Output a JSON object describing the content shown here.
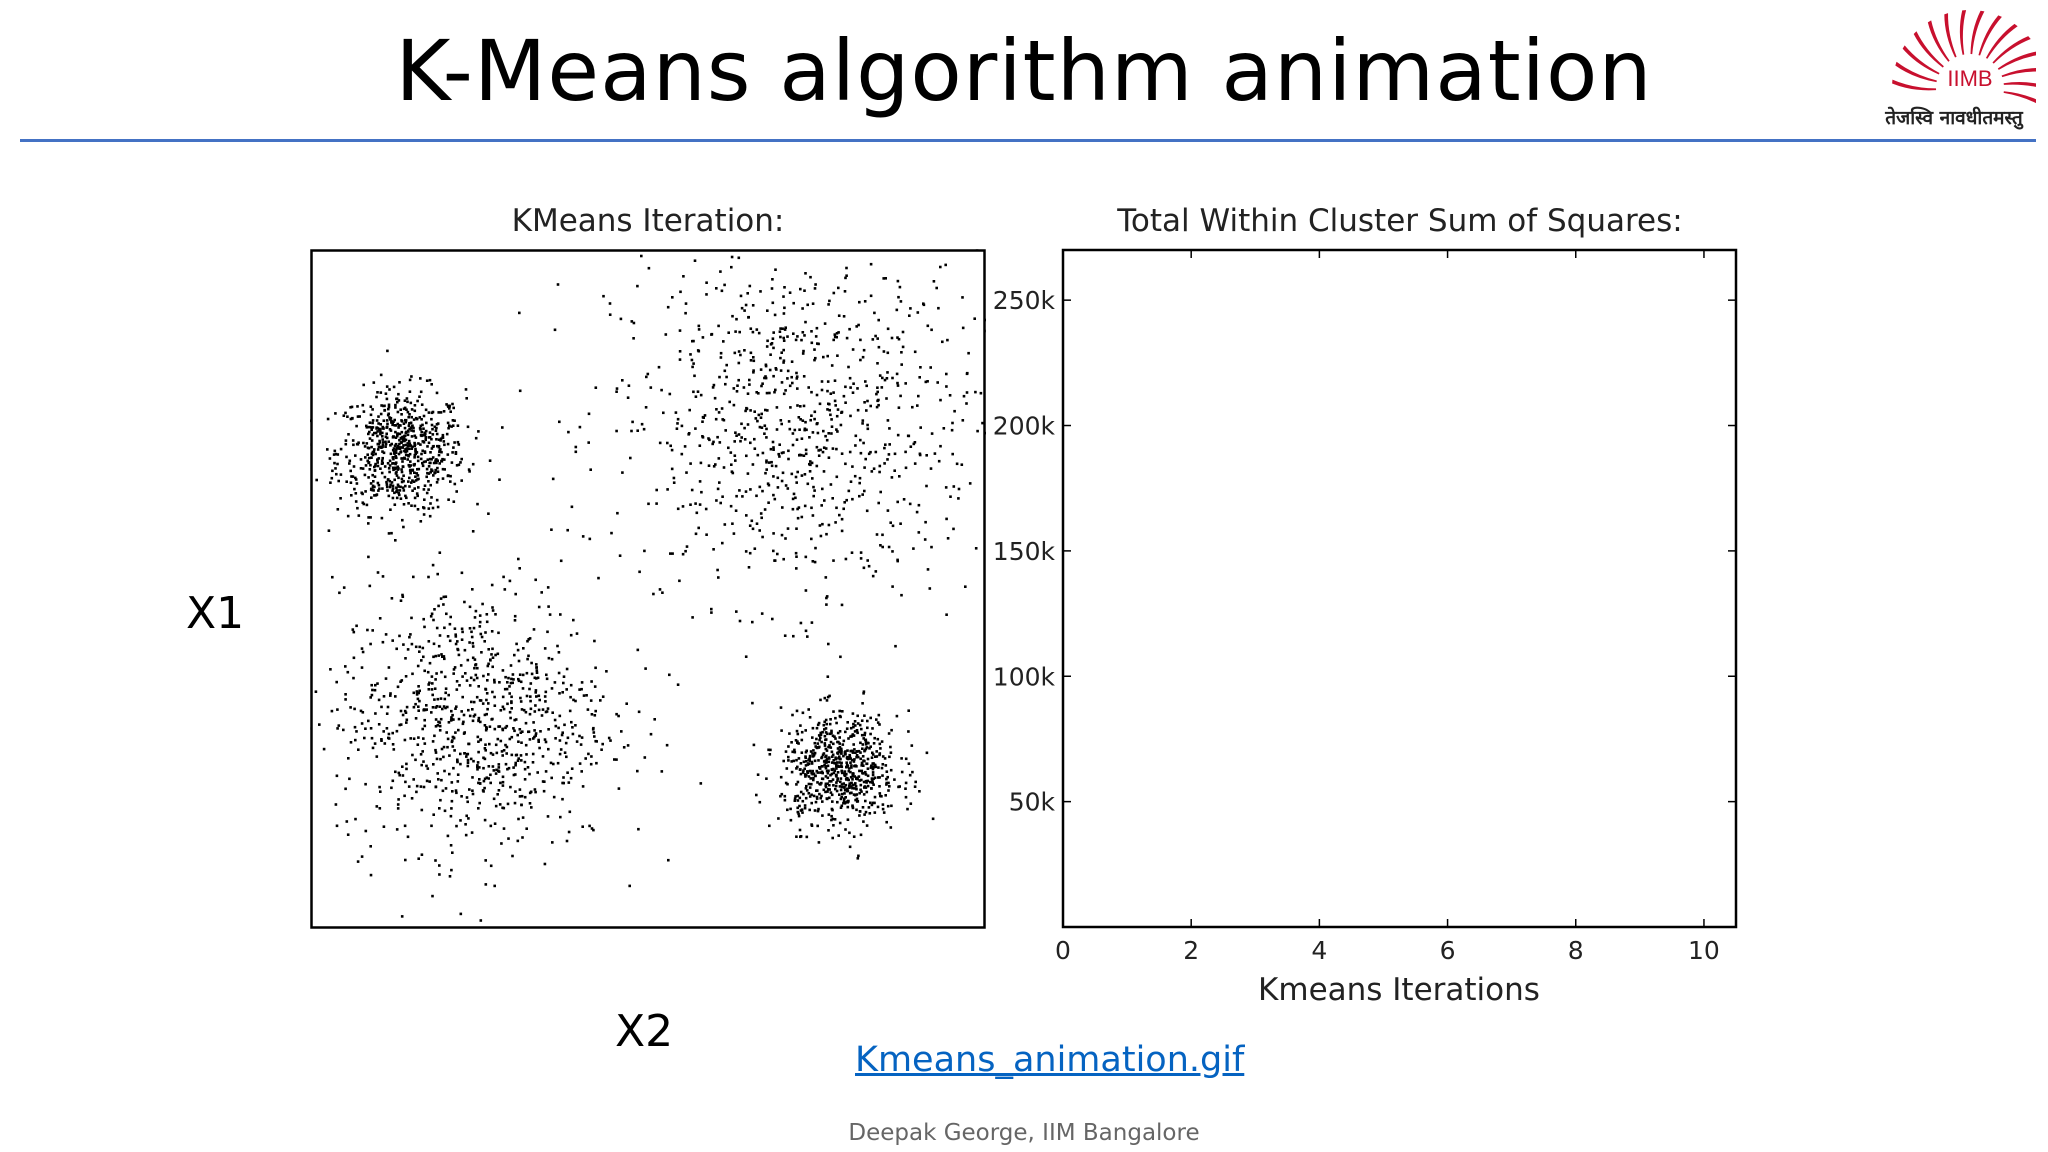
{
  "slide": {
    "title": "K-Means algorithm animation",
    "footer": "Deepak George, IIM Bangalore",
    "link_text": "Kmeans_animation.gif",
    "x1_label": "X1",
    "x2_label": "X2"
  },
  "logo": {
    "mark_text": "IIMB",
    "motto": "तेजस्वि नावधीतमस्तु",
    "color": "#c8102e"
  },
  "chart_data": [
    {
      "type": "scatter",
      "title": "KMeans Iteration:",
      "xlabel": "",
      "ylabel": "",
      "axis_ticks": "hidden",
      "point_color": "#000000",
      "clusters": [
        {
          "center": [
            -3.2,
            1.3
          ],
          "spread": 0.35,
          "count": 700
        },
        {
          "center": [
            1.1,
            1.6
          ],
          "spread": 1.0,
          "count": 900
        },
        {
          "center": [
            -2.4,
            -1.7
          ],
          "spread": 0.75,
          "count": 900
        },
        {
          "center": [
            1.6,
            -2.3
          ],
          "spread": 0.32,
          "count": 700
        }
      ],
      "xlim": [
        -4.2,
        3.2
      ],
      "ylim": [
        -4.1,
        3.6
      ]
    },
    {
      "type": "line",
      "title": "Total Within Cluster Sum of Squares:",
      "xlabel": "Kmeans Iterations",
      "ylabel": "",
      "x_ticks": [
        0,
        2,
        4,
        6,
        8,
        10
      ],
      "y_ticks": [
        50000,
        100000,
        150000,
        200000,
        250000
      ],
      "y_tick_labels": [
        "50k",
        "100k",
        "150k",
        "200k",
        "250k"
      ],
      "xlim": [
        0,
        10.5
      ],
      "ylim": [
        0,
        270000
      ],
      "series": []
    }
  ]
}
